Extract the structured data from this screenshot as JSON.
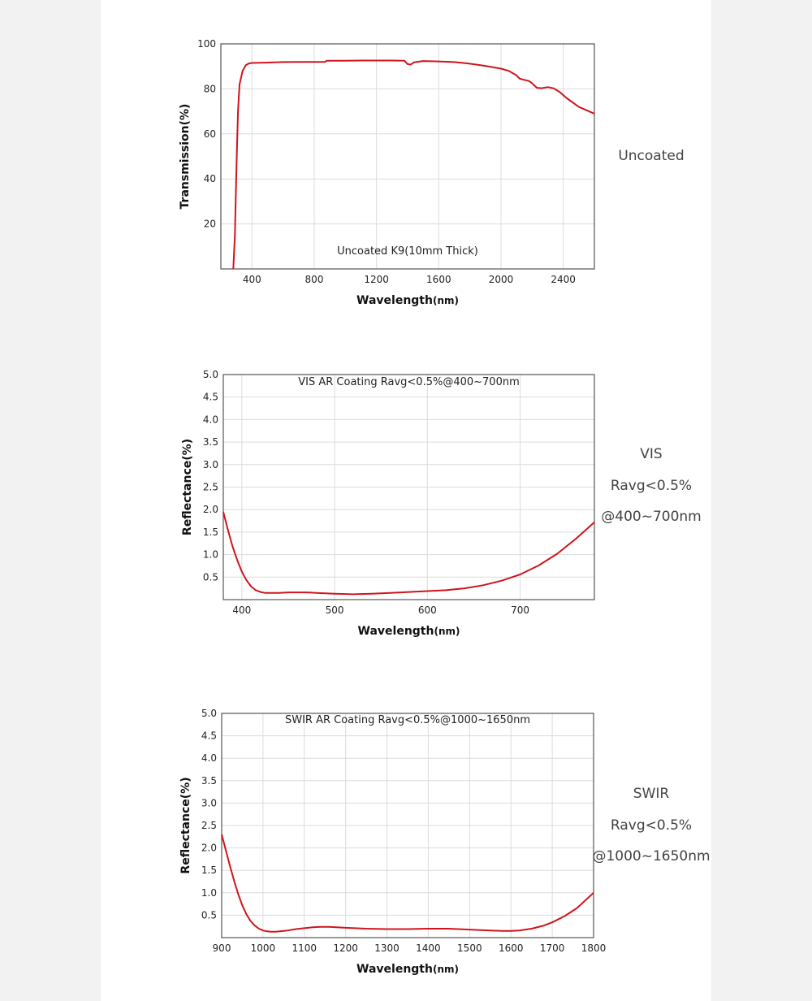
{
  "colors": {
    "line": "#d0141c",
    "grid": "#dcdcdc",
    "frame": "#555555",
    "panel": "#f2f2f2"
  },
  "chart_data": [
    {
      "type": "line",
      "inner_label": "Uncoated K9(10mm Thick)",
      "xlabel": "Wavelength",
      "xlabel_unit": "(nm)",
      "ylabel": "Transmission(%)",
      "xlim": [
        200,
        2600
      ],
      "ylim": [
        0,
        100
      ],
      "xticks": [
        400,
        800,
        1200,
        1600,
        2000,
        2400
      ],
      "yticks": [
        20,
        40,
        60,
        80,
        100
      ],
      "grid": true,
      "side_label": [
        "Uncoated"
      ],
      "series": [
        {
          "x": [
            280,
            290,
            300,
            310,
            320,
            340,
            360,
            380,
            400,
            500,
            600,
            700,
            800,
            870,
            880,
            1000,
            1100,
            1200,
            1300,
            1380,
            1400,
            1420,
            1440,
            1500,
            1600,
            1700,
            1800,
            1900,
            2000,
            2050,
            2100,
            2120,
            2150,
            2180,
            2200,
            2230,
            2260,
            2300,
            2340,
            2380,
            2420,
            2460,
            2500,
            2550,
            2600
          ],
          "y": [
            0,
            15,
            45,
            70,
            82,
            88,
            90.5,
            91.3,
            91.5,
            91.7,
            91.9,
            92.0,
            92.0,
            92.0,
            92.5,
            92.5,
            92.6,
            92.6,
            92.6,
            92.5,
            91.0,
            90.8,
            91.8,
            92.4,
            92.2,
            91.9,
            91.2,
            90.2,
            89.0,
            88.0,
            86.0,
            84.5,
            84.0,
            83.5,
            82.5,
            80.5,
            80.3,
            80.8,
            80.2,
            78.5,
            76.0,
            74.0,
            72.0,
            70.5,
            69.0
          ]
        }
      ]
    },
    {
      "type": "line",
      "inner_label": "VIS AR Coating Ravg<0.5%@400~700nm",
      "xlabel": "Wavelength",
      "xlabel_unit": "(nm)",
      "ylabel": "Reflectance(%)",
      "xlim": [
        380,
        780
      ],
      "ylim": [
        0,
        5.0
      ],
      "xticks": [
        400,
        500,
        600,
        700
      ],
      "yticks": [
        0.5,
        1.0,
        1.5,
        2.0,
        2.5,
        3.0,
        3.5,
        4.0,
        4.5,
        5.0
      ],
      "ytick_labels": [
        "0.5",
        "1.0",
        "1.5",
        "2.0",
        "2.5",
        "3.0",
        "3.5",
        "4.0",
        "4.5",
        "5.0"
      ],
      "grid": true,
      "side_label": [
        "VIS",
        "Ravg<0.5%",
        "@400~700nm"
      ],
      "series": [
        {
          "x": [
            380,
            385,
            390,
            395,
            400,
            405,
            410,
            415,
            420,
            425,
            430,
            440,
            450,
            460,
            470,
            480,
            500,
            520,
            540,
            560,
            580,
            600,
            620,
            640,
            660,
            680,
            700,
            720,
            740,
            760,
            780
          ],
          "y": [
            1.95,
            1.55,
            1.18,
            0.88,
            0.62,
            0.43,
            0.29,
            0.21,
            0.17,
            0.15,
            0.15,
            0.15,
            0.16,
            0.16,
            0.16,
            0.15,
            0.13,
            0.12,
            0.13,
            0.15,
            0.17,
            0.19,
            0.21,
            0.25,
            0.32,
            0.42,
            0.56,
            0.76,
            1.02,
            1.35,
            1.72
          ]
        }
      ]
    },
    {
      "type": "line",
      "inner_label": "SWIR AR Coating Ravg<0.5%@1000~1650nm",
      "xlabel": "Wavelength",
      "xlabel_unit": "(nm)",
      "ylabel": "Reflectance(%)",
      "xlim": [
        900,
        1800
      ],
      "ylim": [
        0,
        5.0
      ],
      "xticks": [
        900,
        1000,
        1100,
        1200,
        1300,
        1400,
        1500,
        1600,
        1700,
        1800
      ],
      "yticks": [
        0.5,
        1.0,
        1.5,
        2.0,
        2.5,
        3.0,
        3.5,
        4.0,
        4.5,
        5.0
      ],
      "ytick_labels": [
        "0.5",
        "1.0",
        "1.5",
        "2.0",
        "2.5",
        "3.0",
        "3.5",
        "4.0",
        "4.5",
        "5.0"
      ],
      "grid": true,
      "side_label": [
        "SWIR",
        "Ravg<0.5%",
        "@1000~1650nm"
      ],
      "series": [
        {
          "x": [
            900,
            910,
            920,
            930,
            940,
            950,
            960,
            970,
            980,
            990,
            1000,
            1010,
            1020,
            1030,
            1040,
            1060,
            1080,
            1100,
            1120,
            1140,
            1160,
            1200,
            1250,
            1300,
            1350,
            1400,
            1450,
            1500,
            1550,
            1580,
            1600,
            1620,
            1650,
            1680,
            1700,
            1730,
            1760,
            1800
          ],
          "y": [
            2.3,
            1.95,
            1.6,
            1.27,
            0.97,
            0.72,
            0.52,
            0.37,
            0.27,
            0.2,
            0.16,
            0.14,
            0.13,
            0.13,
            0.14,
            0.16,
            0.19,
            0.21,
            0.23,
            0.24,
            0.24,
            0.22,
            0.2,
            0.19,
            0.19,
            0.2,
            0.2,
            0.18,
            0.16,
            0.15,
            0.15,
            0.16,
            0.2,
            0.27,
            0.34,
            0.48,
            0.66,
            1.0
          ]
        }
      ]
    }
  ]
}
